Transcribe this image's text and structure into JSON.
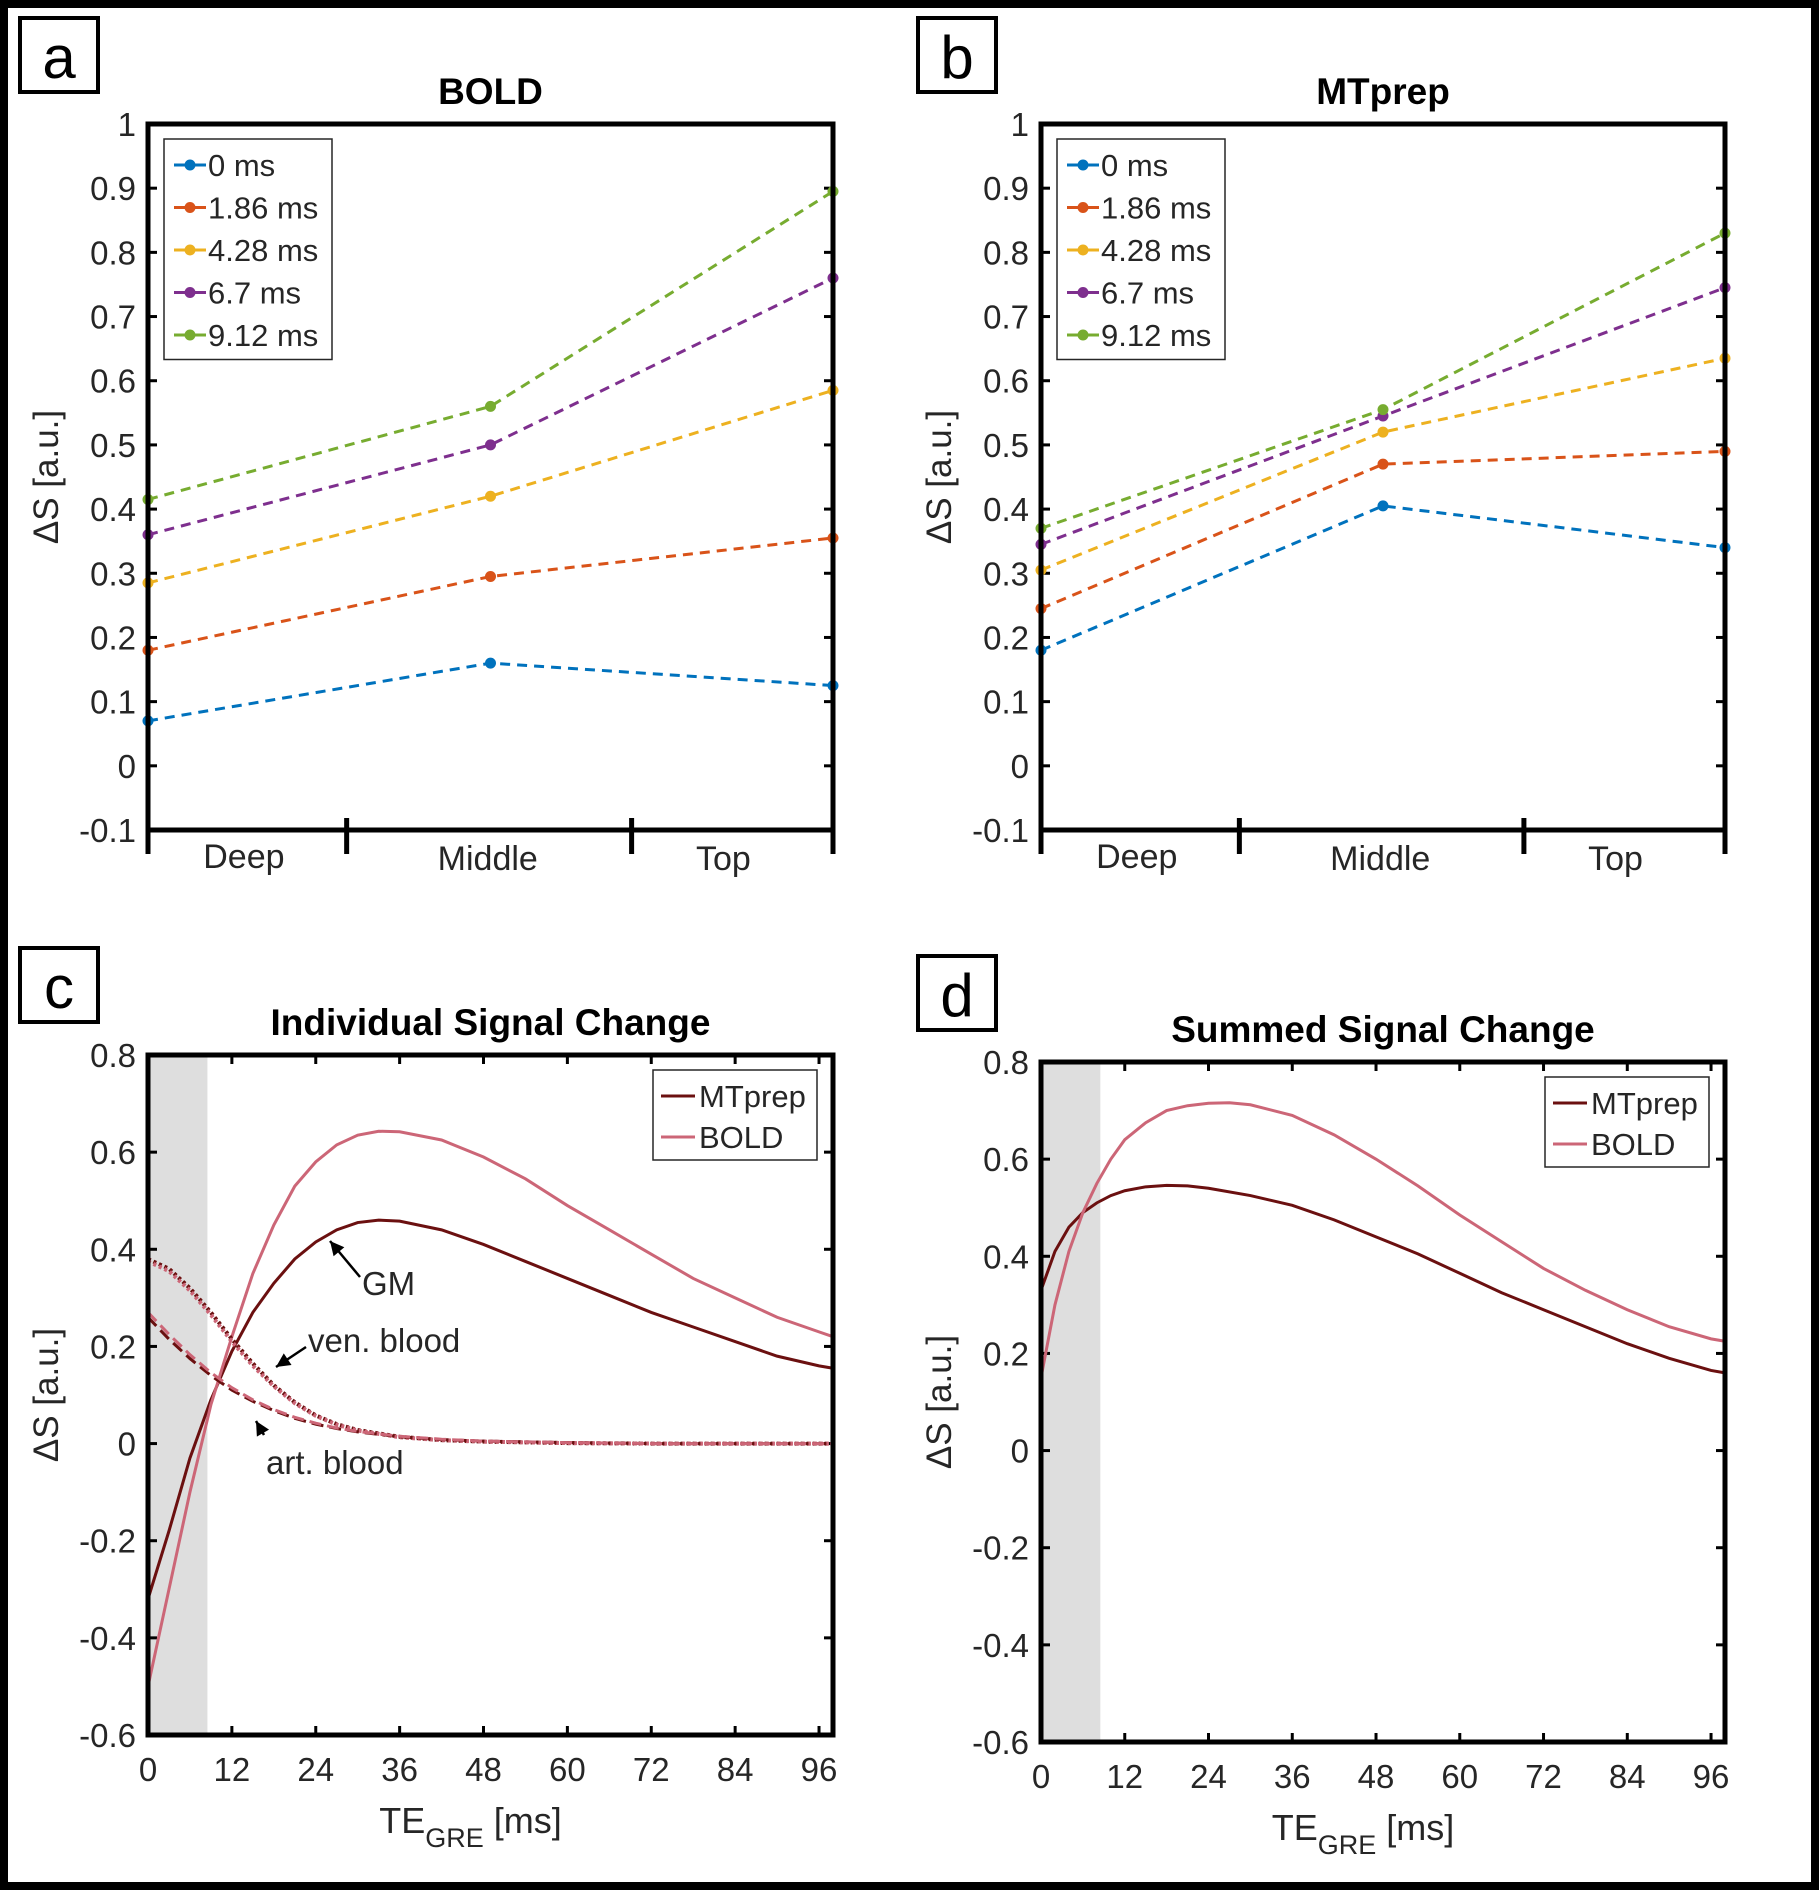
{
  "chart_data": [
    {
      "panel": "a",
      "type": "line",
      "title": "BOLD",
      "xlabel": "",
      "ylabel": "ΔS [a.u.]",
      "ylim": [
        -0.1,
        1
      ],
      "yticks": [
        "-0.1",
        "0",
        "0.1",
        "0.2",
        "0.3",
        "0.4",
        "0.5",
        "0.6",
        "0.7",
        "0.8",
        "0.9",
        "1"
      ],
      "categories": [
        "Deep",
        "Middle",
        "Top"
      ],
      "legend_position": "top-left",
      "series": [
        {
          "name": "0 ms",
          "color": "#0072BD",
          "values": [
            0.07,
            0.16,
            0.125
          ]
        },
        {
          "name": "1.86 ms",
          "color": "#D95319",
          "values": [
            0.18,
            0.295,
            0.355
          ]
        },
        {
          "name": "4.28 ms",
          "color": "#EDB120",
          "values": [
            0.285,
            0.42,
            0.585
          ]
        },
        {
          "name": "6.7 ms",
          "color": "#7E2F8E",
          "values": [
            0.36,
            0.5,
            0.76
          ]
        },
        {
          "name": "9.12 ms",
          "color": "#77AC30",
          "values": [
            0.415,
            0.56,
            0.895
          ]
        }
      ]
    },
    {
      "panel": "b",
      "type": "line",
      "title": "MTprep",
      "xlabel": "",
      "ylabel": "ΔS [a.u.]",
      "ylim": [
        -0.1,
        1
      ],
      "yticks": [
        "-0.1",
        "0",
        "0.1",
        "0.2",
        "0.3",
        "0.4",
        "0.5",
        "0.6",
        "0.7",
        "0.8",
        "0.9",
        "1"
      ],
      "categories": [
        "Deep",
        "Middle",
        "Top"
      ],
      "legend_position": "top-left",
      "series": [
        {
          "name": "0 ms",
          "color": "#0072BD",
          "values": [
            0.18,
            0.405,
            0.34
          ]
        },
        {
          "name": "1.86 ms",
          "color": "#D95319",
          "values": [
            0.245,
            0.47,
            0.49
          ]
        },
        {
          "name": "4.28 ms",
          "color": "#EDB120",
          "values": [
            0.305,
            0.52,
            0.635
          ]
        },
        {
          "name": "6.7 ms",
          "color": "#7E2F8E",
          "values": [
            0.345,
            0.545,
            0.745
          ]
        },
        {
          "name": "9.12 ms",
          "color": "#77AC30",
          "values": [
            0.37,
            0.555,
            0.83
          ]
        }
      ]
    },
    {
      "panel": "c",
      "type": "line",
      "title": "Individual Signal Change",
      "xlabel": "TE",
      "xlabel_sub": "GRE",
      "xlabel_unit": " [ms]",
      "ylabel": "ΔS [a.u.]",
      "xlim": [
        0,
        98
      ],
      "ylim": [
        -0.6,
        0.8
      ],
      "xticks": [
        "0",
        "12",
        "24",
        "36",
        "48",
        "60",
        "72",
        "84",
        "96"
      ],
      "yticks": [
        "-0.6",
        "-0.4",
        "-0.2",
        "0",
        "0.2",
        "0.4",
        "0.6",
        "0.8"
      ],
      "shaded_region": [
        0,
        8.5
      ],
      "legend_position": "top-right",
      "legend": [
        {
          "name": "MTprep",
          "color": "#6B1010"
        },
        {
          "name": "BOLD",
          "color": "#CC6677"
        }
      ],
      "annotations": [
        "GM",
        "ven. blood",
        "art. blood"
      ],
      "series": [
        {
          "name": "MTprep GM",
          "color": "#6B1010",
          "style": "solid",
          "x": [
            0,
            3,
            6,
            9,
            12,
            15,
            18,
            21,
            24,
            27,
            30,
            33,
            36,
            42,
            48,
            54,
            60,
            66,
            72,
            78,
            84,
            90,
            96,
            98
          ],
          "y": [
            -0.32,
            -0.18,
            -0.03,
            0.09,
            0.19,
            0.27,
            0.33,
            0.38,
            0.415,
            0.44,
            0.455,
            0.46,
            0.458,
            0.44,
            0.41,
            0.375,
            0.34,
            0.305,
            0.27,
            0.24,
            0.21,
            0.18,
            0.16,
            0.155
          ]
        },
        {
          "name": "BOLD GM",
          "color": "#CC6677",
          "style": "solid",
          "x": [
            0,
            3,
            6,
            9,
            12,
            15,
            18,
            21,
            24,
            27,
            30,
            33,
            36,
            42,
            48,
            54,
            60,
            66,
            72,
            78,
            84,
            90,
            96,
            98
          ],
          "y": [
            -0.5,
            -0.3,
            -0.1,
            0.08,
            0.22,
            0.35,
            0.45,
            0.53,
            0.58,
            0.615,
            0.635,
            0.643,
            0.642,
            0.625,
            0.59,
            0.545,
            0.49,
            0.44,
            0.39,
            0.34,
            0.3,
            0.26,
            0.23,
            0.22
          ]
        },
        {
          "name": "MTprep ven. blood",
          "color": "#6B1010",
          "style": "dotted",
          "x": [
            0,
            3,
            6,
            9,
            12,
            15,
            18,
            21,
            24,
            27,
            30,
            36,
            42,
            48,
            60,
            72,
            84,
            98
          ],
          "y": [
            0.38,
            0.36,
            0.32,
            0.27,
            0.215,
            0.165,
            0.12,
            0.085,
            0.058,
            0.04,
            0.028,
            0.014,
            0.007,
            0.004,
            0.001,
            0,
            0,
            0
          ]
        },
        {
          "name": "BOLD ven. blood",
          "color": "#CC6677",
          "style": "dotted",
          "x": [
            0,
            3,
            6,
            9,
            12,
            15,
            18,
            21,
            24,
            27,
            30,
            36,
            42,
            48,
            60,
            72,
            84,
            98
          ],
          "y": [
            0.375,
            0.355,
            0.315,
            0.265,
            0.21,
            0.16,
            0.118,
            0.083,
            0.057,
            0.039,
            0.027,
            0.013,
            0.007,
            0.004,
            0.001,
            0,
            0,
            0
          ]
        },
        {
          "name": "MTprep art. blood",
          "color": "#6B1010",
          "style": "dashed",
          "x": [
            0,
            3,
            6,
            9,
            12,
            15,
            18,
            21,
            24,
            27,
            30,
            36,
            42,
            48,
            60,
            72,
            84,
            98
          ],
          "y": [
            0.26,
            0.215,
            0.175,
            0.14,
            0.11,
            0.087,
            0.068,
            0.052,
            0.04,
            0.031,
            0.024,
            0.014,
            0.008,
            0.005,
            0.002,
            0,
            0,
            0
          ]
        },
        {
          "name": "BOLD art. blood",
          "color": "#CC6677",
          "style": "dashed",
          "x": [
            0,
            3,
            6,
            9,
            12,
            15,
            18,
            21,
            24,
            27,
            30,
            36,
            42,
            48,
            60,
            72,
            84,
            98
          ],
          "y": [
            0.27,
            0.225,
            0.183,
            0.146,
            0.115,
            0.09,
            0.07,
            0.054,
            0.042,
            0.032,
            0.025,
            0.015,
            0.009,
            0.005,
            0.002,
            0,
            0,
            0
          ]
        }
      ]
    },
    {
      "panel": "d",
      "type": "line",
      "title": "Summed Signal Change",
      "xlabel": "TE",
      "xlabel_sub": "GRE",
      "xlabel_unit": " [ms]",
      "ylabel": "ΔS [a.u.]",
      "xlim": [
        0,
        98
      ],
      "ylim": [
        -0.6,
        0.8
      ],
      "xticks": [
        "0",
        "12",
        "24",
        "36",
        "48",
        "60",
        "72",
        "84",
        "96"
      ],
      "yticks": [
        "-0.6",
        "-0.4",
        "-0.2",
        "0",
        "0.2",
        "0.4",
        "0.6",
        "0.8"
      ],
      "shaded_region": [
        0,
        8.5
      ],
      "legend_position": "top-right",
      "legend": [
        {
          "name": "MTprep",
          "color": "#6B1010"
        },
        {
          "name": "BOLD",
          "color": "#CC6677"
        }
      ],
      "series": [
        {
          "name": "MTprep",
          "color": "#6B1010",
          "style": "solid",
          "x": [
            0,
            2,
            4,
            6,
            8,
            10,
            12,
            15,
            18,
            21,
            24,
            30,
            36,
            42,
            48,
            54,
            60,
            66,
            72,
            78,
            84,
            90,
            96,
            98
          ],
          "y": [
            0.33,
            0.41,
            0.46,
            0.49,
            0.51,
            0.525,
            0.535,
            0.543,
            0.546,
            0.545,
            0.54,
            0.525,
            0.505,
            0.475,
            0.44,
            0.405,
            0.365,
            0.325,
            0.29,
            0.255,
            0.22,
            0.19,
            0.165,
            0.16
          ]
        },
        {
          "name": "BOLD",
          "color": "#CC6677",
          "style": "solid",
          "x": [
            0,
            2,
            4,
            6,
            8,
            10,
            12,
            15,
            18,
            21,
            24,
            27,
            30,
            36,
            42,
            48,
            54,
            60,
            66,
            72,
            78,
            84,
            90,
            96,
            98
          ],
          "y": [
            0.15,
            0.3,
            0.41,
            0.49,
            0.55,
            0.6,
            0.64,
            0.675,
            0.7,
            0.71,
            0.715,
            0.716,
            0.712,
            0.69,
            0.65,
            0.6,
            0.545,
            0.485,
            0.43,
            0.375,
            0.33,
            0.29,
            0.255,
            0.23,
            0.225
          ]
        }
      ]
    }
  ]
}
